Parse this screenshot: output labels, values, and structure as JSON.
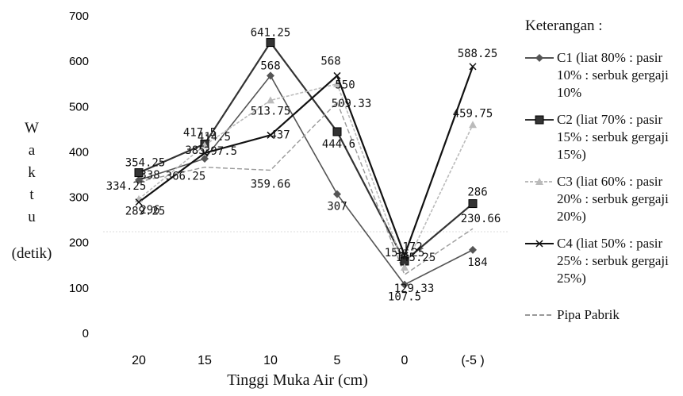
{
  "chart_data": {
    "type": "line",
    "xlabel": "Tinggi Muka Air (cm)",
    "ylabel_letters": [
      "W",
      "a",
      "k",
      "t",
      "u"
    ],
    "ylabel_unit": "(detik)",
    "ylim": [
      0,
      700
    ],
    "yticks": [
      0,
      100,
      200,
      300,
      400,
      500,
      600,
      700
    ],
    "categories": [
      "20",
      "15",
      "10",
      "5",
      "0",
      "(-5 )"
    ],
    "legend_title": "Keterangan :",
    "series": [
      {
        "name": "C1 (liat 80% : pasir 10% : serbuk gergaji 10%)",
        "legend_lines": [
          "C1 (liat 80% : pasir",
          "10% : serbuk gergaji",
          "10%"
        ],
        "color": "#555555",
        "marker": "diamond",
        "values": [
          338,
          385,
          568,
          307,
          107.5,
          184
        ],
        "labels": [
          "338",
          "385",
          "568",
          "307",
          "107.5",
          "184"
        ]
      },
      {
        "name": "C2 (liat 70% : pasir 15% : serbuk gergaji 15%)",
        "legend_lines": [
          "C2 (liat 70% : pasir",
          "15% : serbuk gergaji",
          "15%)"
        ],
        "color": "#333333",
        "marker": "square",
        "values": [
          354.25,
          417.5,
          641.25,
          444.6,
          159.25,
          286
        ],
        "labels": [
          "354.25",
          "417.5",
          "641.25",
          "444.6",
          "159.25",
          "286"
        ]
      },
      {
        "name": "C3 (liat 60% : pasir 20% : serbuk gergaji 20%)",
        "legend_lines": [
          "C3 (liat 60% : pasir",
          "20% : serbuk gergaji",
          "20%)"
        ],
        "color": "#bbbbbb",
        "marker": "triangle",
        "values": [
          296,
          414.5,
          513.75,
          550,
          145.25,
          459.75
        ],
        "labels": [
          "296",
          "414.5",
          "513.75",
          "550",
          "145.25",
          "459.75"
        ]
      },
      {
        "name": "C4 (liat 50% : pasir 25% : serbuk gergaji 25%)",
        "legend_lines": [
          "C4 (liat 50% : pasir",
          "25% : serbuk gergaji",
          "25%)"
        ],
        "color": "#111111",
        "marker": "x",
        "values": [
          289.25,
          397.5,
          437,
          568,
          172,
          588.25
        ],
        "labels": [
          "289.25",
          "397.5",
          "437",
          "568",
          "172",
          "588.25"
        ]
      },
      {
        "name": "Pipa Pabrik",
        "legend_lines": [
          "Pipa Pabrik"
        ],
        "color": "#999999",
        "marker": "none",
        "values": [
          334.25,
          366.25,
          359.66,
          509.33,
          129.33,
          230.66
        ],
        "labels": [
          "334.25",
          "366.25",
          "359.66",
          "509.33",
          "129.33",
          "230.66"
        ]
      }
    ]
  }
}
